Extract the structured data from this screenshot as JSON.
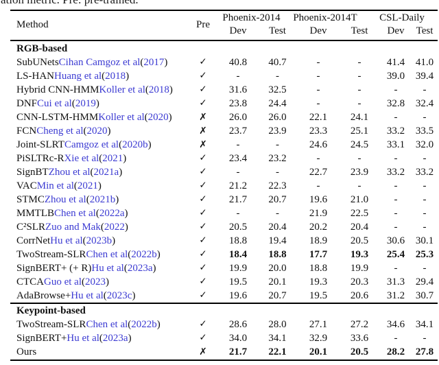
{
  "caption_fragment": "ation metric. Pre: pre-trained.",
  "colors": {
    "citation_blue": "#3b3ad2",
    "text": "#111111",
    "rule": "#000000"
  },
  "header": {
    "method": "Method",
    "pre": "Pre",
    "groups": [
      {
        "label": "Phoenix-2014",
        "dev": "Dev",
        "test": "Test"
      },
      {
        "label": "Phoenix-2014T",
        "dev": "Dev",
        "test": "Test"
      },
      {
        "label": "CSL-Daily",
        "dev": "Dev",
        "test": "Test"
      }
    ]
  },
  "pre_icons": {
    "check": "✓",
    "cross": "✗"
  },
  "sections": [
    {
      "title": "RGB-based",
      "rows": [
        {
          "method": "SubUNets",
          "authors": "Cihan Camgoz et al",
          "year": "2017",
          "pre": "check",
          "values": [
            "40.8",
            "40.7",
            "-",
            "-",
            "41.4",
            "41.0"
          ],
          "bold": false
        },
        {
          "method": "LS-HAN",
          "authors": "Huang et al",
          "year": "2018",
          "pre": "check",
          "values": [
            "-",
            "-",
            "-",
            "-",
            "39.0",
            "39.4"
          ],
          "bold": false
        },
        {
          "method": "Hybrid CNN-HMM",
          "authors": "Koller et al",
          "year": "2018",
          "pre": "check",
          "values": [
            "31.6",
            "32.5",
            "-",
            "-",
            "-",
            "-"
          ],
          "bold": false
        },
        {
          "method": "DNF",
          "authors": "Cui et al",
          "year": "2019",
          "pre": "check",
          "values": [
            "23.8",
            "24.4",
            "-",
            "-",
            "32.8",
            "32.4"
          ],
          "bold": false
        },
        {
          "method": "CNN-LSTM-HMM",
          "authors": "Koller et al",
          "year": "2020",
          "pre": "cross",
          "values": [
            "26.0",
            "26.0",
            "22.1",
            "24.1",
            "-",
            "-"
          ],
          "bold": false
        },
        {
          "method": "FCN",
          "authors": "Cheng et al",
          "year": "2020",
          "pre": "cross",
          "values": [
            "23.7",
            "23.9",
            "23.3",
            "25.1",
            "33.2",
            "33.5"
          ],
          "bold": false
        },
        {
          "method": "Joint-SLRT",
          "authors": "Camgoz et al",
          "year": "2020b",
          "pre": "cross",
          "values": [
            "-",
            "-",
            "24.6",
            "24.5",
            "33.1",
            "32.0"
          ],
          "bold": false
        },
        {
          "method": "PiSLTRc-R",
          "authors": "Xie et al",
          "year": "2021",
          "pre": "check",
          "values": [
            "23.4",
            "23.2",
            "-",
            "-",
            "-",
            "-"
          ],
          "bold": false
        },
        {
          "method": "SignBT",
          "authors": "Zhou et al",
          "year": "2021a",
          "pre": "check",
          "values": [
            "-",
            "-",
            "22.7",
            "23.9",
            "33.2",
            "33.2"
          ],
          "bold": false
        },
        {
          "method": "VAC",
          "authors": "Min et al",
          "year": "2021",
          "pre": "check",
          "values": [
            "21.2",
            "22.3",
            "-",
            "-",
            "-",
            "-"
          ],
          "bold": false
        },
        {
          "method": "STMC",
          "authors": "Zhou et al",
          "year": "2021b",
          "pre": "check",
          "values": [
            "21.7",
            "20.7",
            "19.6",
            "21.0",
            "-",
            "-"
          ],
          "bold": false
        },
        {
          "method": "MMTLB",
          "authors": "Chen et al",
          "year": "2022a",
          "pre": "check",
          "values": [
            "-",
            "-",
            "21.9",
            "22.5",
            "-",
            "-"
          ],
          "bold": false
        },
        {
          "method": "C²SLR",
          "authors": "Zuo and Mak",
          "year": "2022",
          "pre": "check",
          "values": [
            "20.5",
            "20.4",
            "20.2",
            "20.4",
            "-",
            "-"
          ],
          "bold": false
        },
        {
          "method": "CorrNet",
          "authors": "Hu et al",
          "year": "2023b",
          "pre": "check",
          "values": [
            "18.8",
            "19.4",
            "18.9",
            "20.5",
            "30.6",
            "30.1"
          ],
          "bold": false
        },
        {
          "method": "TwoStream-SLR",
          "authors": "Chen et al",
          "year": "2022b",
          "pre": "check",
          "values": [
            "18.4",
            "18.8",
            "17.7",
            "19.3",
            "25.4",
            "25.3"
          ],
          "bold": true
        },
        {
          "method": "SignBERT+ (+ R)",
          "authors": "Hu et al",
          "year": "2023a",
          "pre": "check",
          "values": [
            "19.9",
            "20.0",
            "18.8",
            "19.9",
            "-",
            "-"
          ],
          "bold": false
        },
        {
          "method": "CTCA",
          "authors": "Guo et al",
          "year": "2023",
          "pre": "check",
          "values": [
            "19.5",
            "20.1",
            "19.3",
            "20.3",
            "31.3",
            "29.4"
          ],
          "bold": false
        },
        {
          "method": "AdaBrowse+",
          "authors": "Hu et al",
          "year": "2023c",
          "pre": "check",
          "values": [
            "19.6",
            "20.7",
            "19.5",
            "20.6",
            "31.2",
            "30.7"
          ],
          "bold": false
        }
      ]
    },
    {
      "title": "Keypoint-based",
      "rows": [
        {
          "method": "TwoStream-SLR",
          "authors": "Chen et al",
          "year": "2022b",
          "pre": "check",
          "values": [
            "28.6",
            "28.0",
            "27.1",
            "27.2",
            "34.6",
            "34.1"
          ],
          "bold": false
        },
        {
          "method": "SignBERT+",
          "authors": "Hu et al",
          "year": "2023a",
          "pre": "check",
          "values": [
            "34.0",
            "34.1",
            "32.9",
            "33.6",
            "-",
            "-"
          ],
          "bold": false
        },
        {
          "method": "Ours",
          "authors": "",
          "year": "",
          "pre": "cross",
          "values": [
            "21.7",
            "22.1",
            "20.1",
            "20.5",
            "28.2",
            "27.8"
          ],
          "bold": true
        }
      ]
    }
  ]
}
